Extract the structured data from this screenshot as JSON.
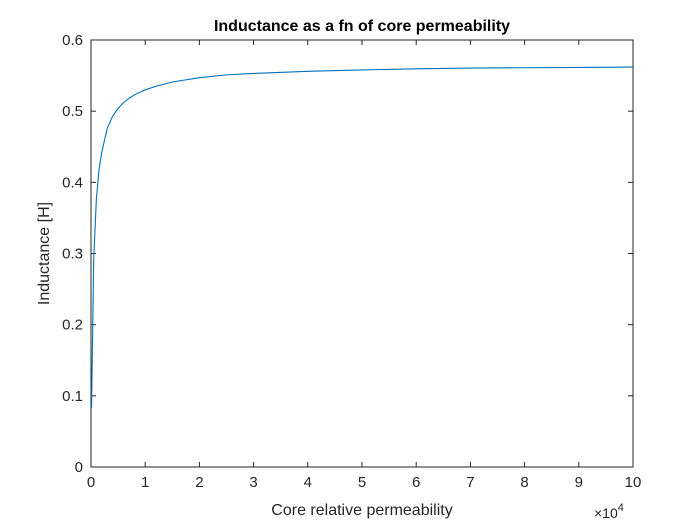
{
  "chart_data": {
    "type": "line",
    "title": "Inductance as a fn of core permeability",
    "xlabel": "Core relative permeability",
    "ylabel": "Inductance [H]",
    "xlim": [
      0,
      100000
    ],
    "ylim": [
      0,
      0.6
    ],
    "x_ticks": [
      0,
      10000,
      20000,
      30000,
      40000,
      50000,
      60000,
      70000,
      80000,
      90000,
      100000
    ],
    "x_tick_labels": [
      "0",
      "1",
      "2",
      "3",
      "4",
      "5",
      "6",
      "7",
      "8",
      "9",
      "10"
    ],
    "x_exponent_label": "×10",
    "x_exponent_power": "4",
    "y_ticks": [
      0,
      0.1,
      0.2,
      0.3,
      0.4,
      0.5,
      0.6
    ],
    "y_tick_labels": [
      "0",
      "0.1",
      "0.2",
      "0.3",
      "0.4",
      "0.5",
      "0.6"
    ],
    "grid": false,
    "box": true,
    "series": [
      {
        "color": "#0072BD",
        "x": [
          100,
          500,
          1000,
          1500,
          2000,
          3000,
          4000,
          5000,
          6000,
          7000,
          8000,
          10000,
          12000,
          15000,
          20000,
          25000,
          30000,
          40000,
          50000,
          60000,
          70000,
          80000,
          90000,
          100000
        ],
        "y": [
          0.083,
          0.292,
          0.378,
          0.419,
          0.443,
          0.476,
          0.493,
          0.504,
          0.512,
          0.518,
          0.523,
          0.53,
          0.535,
          0.541,
          0.547,
          0.551,
          0.553,
          0.556,
          0.558,
          0.5595,
          0.5605,
          0.561,
          0.5615,
          0.562
        ]
      }
    ]
  }
}
